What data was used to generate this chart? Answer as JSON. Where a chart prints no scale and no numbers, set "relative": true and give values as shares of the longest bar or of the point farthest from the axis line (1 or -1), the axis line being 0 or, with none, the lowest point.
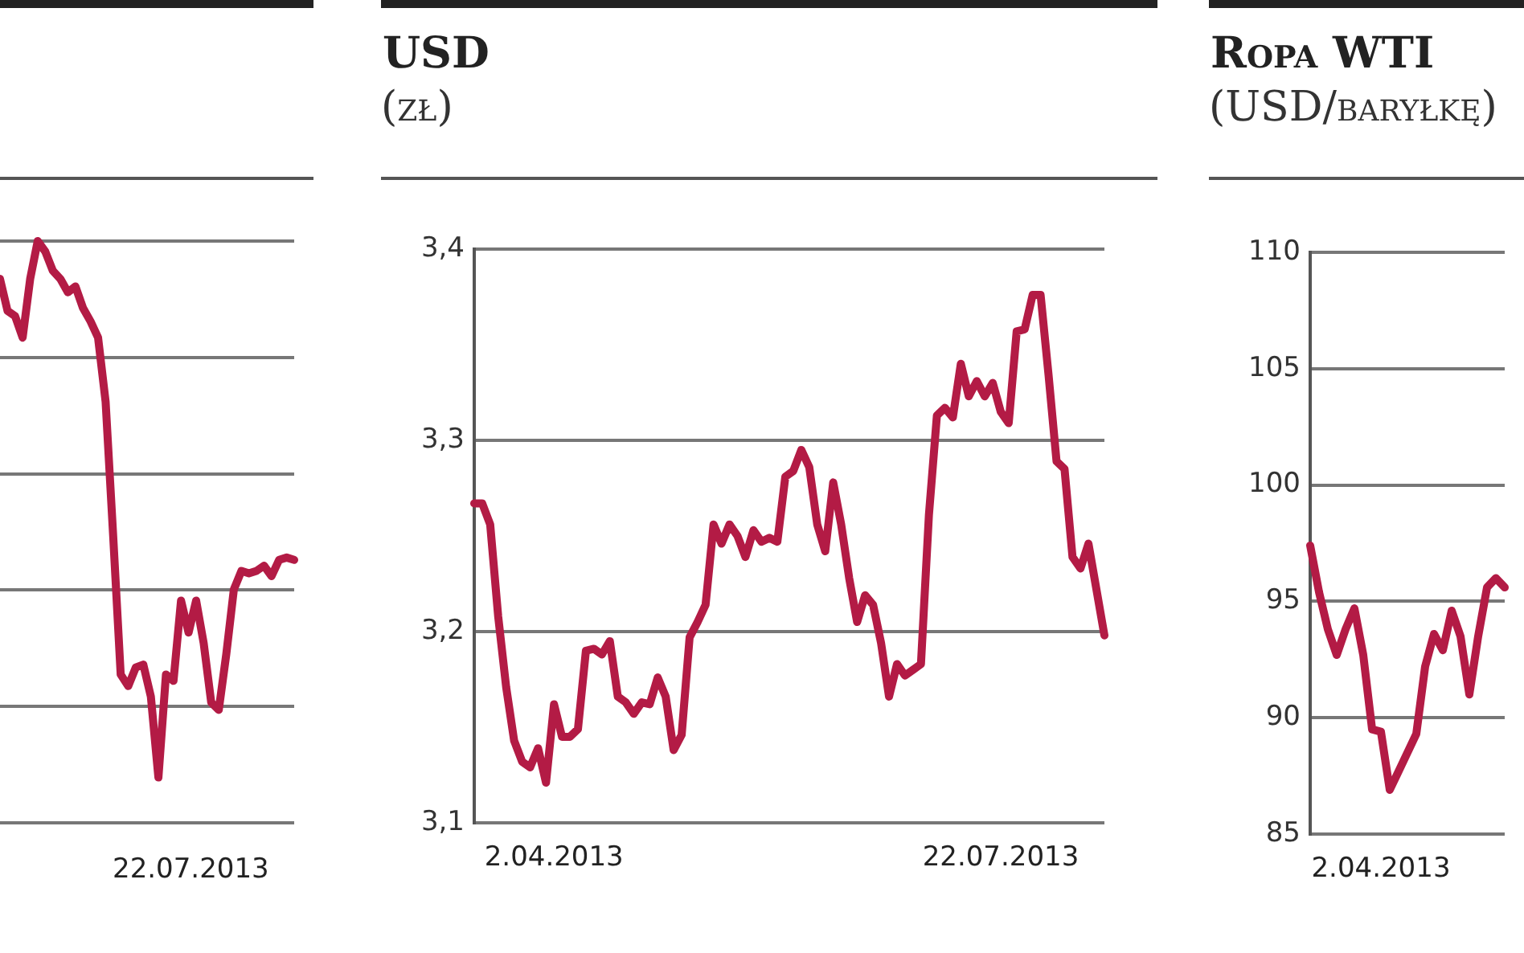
{
  "chart_data": [
    {
      "type": "line",
      "relative": true,
      "grid": "y",
      "color": "#b31b45",
      "categories": [
        null,
        null,
        null,
        null,
        null,
        null,
        null,
        null,
        null,
        null,
        null,
        null,
        null,
        null,
        null,
        null,
        null,
        null,
        null,
        null,
        null,
        null,
        null,
        null,
        null,
        null,
        null,
        null,
        null,
        null,
        null,
        null,
        null,
        null,
        null,
        null,
        null,
        null,
        null,
        null
      ],
      "annotations": [
        "22.07.2013"
      ],
      "values": [
        0.935,
        0.88,
        0.871,
        0.834,
        0.935,
        1,
        0.982,
        0.949,
        0.935,
        0.912,
        0.922,
        0.885,
        0.862,
        0.834,
        0.724,
        0.494,
        0.255,
        0.235,
        0.267,
        0.272,
        0.217,
        0.078,
        0.255,
        0.244,
        0.382,
        0.327,
        0.382,
        0.309,
        0.207,
        0.194,
        0.29,
        0.401,
        0.433,
        0.429,
        0.433,
        0.442,
        0.424,
        0.452,
        0.456,
        0.452
      ]
    },
    {
      "type": "line",
      "title": "USD",
      "subtitle": "(zł)",
      "grid": "y",
      "color": "#b31b45",
      "ylim": [
        3.1,
        3.4
      ],
      "yticks": [
        {
          "value": 3.1,
          "label": "3,1"
        },
        {
          "value": 3.2,
          "label": "3,2"
        },
        {
          "value": 3.3,
          "label": "3,3"
        },
        {
          "value": 3.4,
          "label": "3,4"
        }
      ],
      "categories": [
        null,
        null,
        null,
        null,
        null,
        null,
        null,
        null,
        null,
        null,
        "2.04.2013",
        null,
        null,
        null,
        null,
        null,
        null,
        null,
        null,
        null,
        null,
        null,
        null,
        null,
        null,
        null,
        null,
        null,
        null,
        null,
        null,
        null,
        null,
        null,
        null,
        null,
        null,
        null,
        null,
        null,
        null,
        null,
        null,
        null,
        null,
        null,
        null,
        null,
        null,
        null,
        null,
        null,
        null,
        null,
        null,
        null,
        null,
        null,
        null,
        null,
        null,
        null,
        null,
        null,
        null,
        null,
        "22.07.2013",
        null,
        null,
        null,
        null,
        null,
        null,
        null,
        null,
        null,
        null,
        null,
        null,
        null
      ],
      "values": [
        3.267,
        3.267,
        3.256,
        3.208,
        3.171,
        3.143,
        3.132,
        3.129,
        3.139,
        3.121,
        3.162,
        3.145,
        3.145,
        3.149,
        3.19,
        3.191,
        3.188,
        3.195,
        3.166,
        3.163,
        3.157,
        3.163,
        3.162,
        3.176,
        3.166,
        3.138,
        3.146,
        3.197,
        3.205,
        3.214,
        3.256,
        3.246,
        3.256,
        3.25,
        3.239,
        3.253,
        3.247,
        3.249,
        3.247,
        3.281,
        3.284,
        3.295,
        3.286,
        3.256,
        3.242,
        3.278,
        3.256,
        3.228,
        3.205,
        3.219,
        3.214,
        3.194,
        3.166,
        3.183,
        3.177,
        3.18,
        3.183,
        3.261,
        3.313,
        3.317,
        3.312,
        3.34,
        3.323,
        3.331,
        3.323,
        3.33,
        3.315,
        3.309,
        3.357,
        3.358,
        3.376,
        3.376,
        3.334,
        3.289,
        3.285,
        3.239,
        3.233,
        3.246,
        3.222,
        3.198
      ]
    },
    {
      "type": "line",
      "title": "Ropa WTI",
      "subtitle": "(USD/baryłkę)",
      "grid": "y",
      "color": "#b31b45",
      "ylim": [
        85,
        110
      ],
      "yticks": [
        85,
        90,
        95,
        100,
        105,
        110
      ],
      "categories": [
        null,
        null,
        null,
        null,
        null,
        null,
        null,
        null,
        "2.04.2013",
        null,
        null,
        null,
        null,
        null,
        null,
        null,
        null,
        null,
        null,
        null,
        null,
        null,
        null
      ],
      "values": [
        97.4,
        95.4,
        93.8,
        92.7,
        93.8,
        94.7,
        92.7,
        89.5,
        89.4,
        86.9,
        87.7,
        88.5,
        89.3,
        92.2,
        93.6,
        92.9,
        94.6,
        93.5,
        91,
        93.5,
        95.6,
        96,
        95.6
      ]
    }
  ]
}
